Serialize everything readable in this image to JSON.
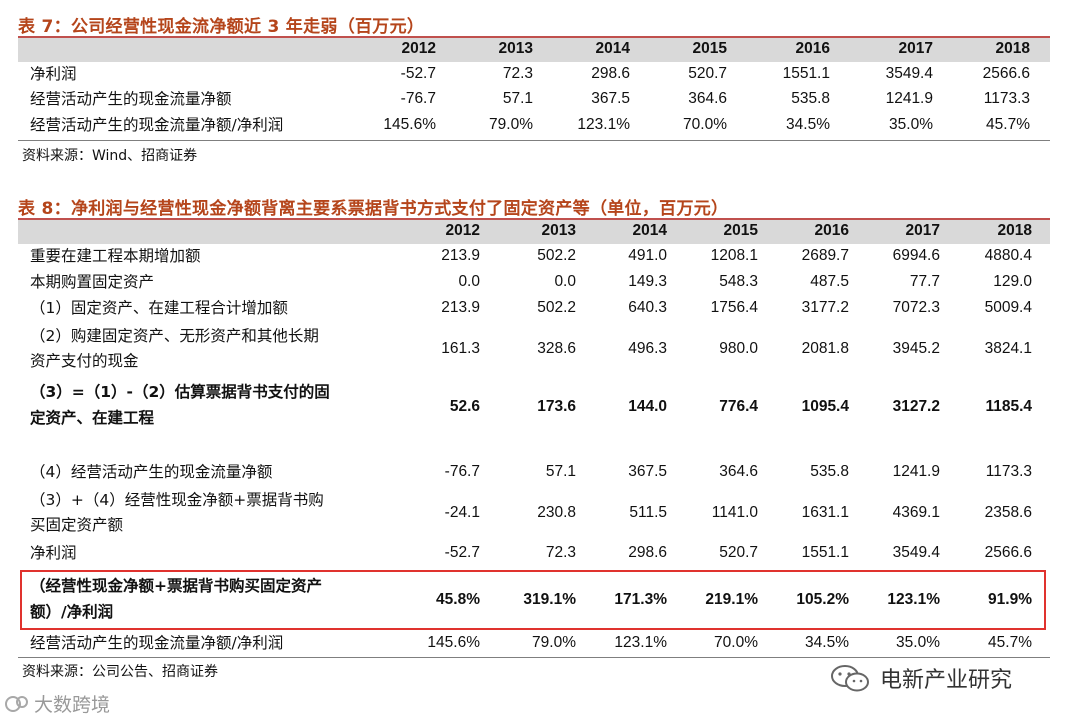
{
  "table7": {
    "title": "表 7：公司经营性现金流净额近 3 年走弱（百万元）",
    "years": [
      "2012",
      "2013",
      "2014",
      "2015",
      "2016",
      "2017",
      "2018"
    ],
    "rows": [
      {
        "label": "净利润",
        "values": [
          "-52.7",
          "72.3",
          "298.6",
          "520.7",
          "1551.1",
          "3549.4",
          "2566.6"
        ]
      },
      {
        "label": "经营活动产生的现金流量净额",
        "values": [
          "-76.7",
          "57.1",
          "367.5",
          "364.6",
          "535.8",
          "1241.9",
          "1173.3"
        ]
      },
      {
        "label": "经营活动产生的现金流量净额/净利润",
        "values": [
          "145.6%",
          "79.0%",
          "123.1%",
          "70.0%",
          "34.5%",
          "35.0%",
          "45.7%"
        ]
      }
    ],
    "source": "资料来源：Wind、招商证券"
  },
  "table8": {
    "title": "表 8：净利润与经营性现金净额背离主要系票据背书方式支付了固定资产等（单位，百万元）",
    "years": [
      "2012",
      "2013",
      "2014",
      "2015",
      "2016",
      "2017",
      "2018"
    ],
    "rows": [
      {
        "label": [
          "重要在建工程本期增加额"
        ],
        "values": [
          "213.9",
          "502.2",
          "491.0",
          "1208.1",
          "2689.7",
          "6994.6",
          "4880.4"
        ]
      },
      {
        "label": [
          "本期购置固定资产"
        ],
        "values": [
          "0.0",
          "0.0",
          "149.3",
          "548.3",
          "487.5",
          "77.7",
          "129.0"
        ]
      },
      {
        "label": [
          "（1）固定资产、在建工程合计增加额"
        ],
        "values": [
          "213.9",
          "502.2",
          "640.3",
          "1756.4",
          "3177.2",
          "7072.3",
          "5009.4"
        ]
      },
      {
        "label": [
          "（2）购建固定资产、无形资产和其他长期",
          "资产支付的现金"
        ],
        "values": [
          "161.3",
          "328.6",
          "496.3",
          "980.0",
          "2081.8",
          "3945.2",
          "3824.1"
        ]
      },
      {
        "label": [
          "（3）=（1）-（2）估算票据背书支付的固",
          "定资产、在建工程"
        ],
        "values": [
          "52.6",
          "173.6",
          "144.0",
          "776.4",
          "1095.4",
          "3127.2",
          "1185.4"
        ]
      },
      {
        "label": [
          "（4）经营活动产生的现金流量净额"
        ],
        "values": [
          "-76.7",
          "57.1",
          "367.5",
          "364.6",
          "535.8",
          "1241.9",
          "1173.3"
        ]
      },
      {
        "label": [
          "（3）+（4）经营性现金净额+票据背书购",
          "买固定资产额"
        ],
        "values": [
          "-24.1",
          "230.8",
          "511.5",
          "1141.0",
          "1631.1",
          "4369.1",
          "2358.6"
        ]
      },
      {
        "label": [
          "净利润"
        ],
        "values": [
          "-52.7",
          "72.3",
          "298.6",
          "520.7",
          "1551.1",
          "3549.4",
          "2566.6"
        ]
      },
      {
        "label": [
          "（经营性现金净额+票据背书购买固定资产",
          "额）/净利润"
        ],
        "values": [
          "45.8%",
          "319.1%",
          "171.3%",
          "219.1%",
          "105.2%",
          "123.1%",
          "91.9%"
        ]
      },
      {
        "label": [
          "经营活动产生的现金流量净额/净利润"
        ],
        "values": [
          "145.6%",
          "79.0%",
          "123.1%",
          "70.0%",
          "34.5%",
          "35.0%",
          "45.7%"
        ]
      }
    ],
    "source": "资料来源：公司公告、招商证券"
  },
  "watermarks": {
    "right": "电新产业研究",
    "left": "大数跨境"
  },
  "colors": {
    "title": "#b5451b",
    "header_bg": "#d9d9d9",
    "rule": "#c0504d",
    "highlight_box": "#e0322e"
  }
}
